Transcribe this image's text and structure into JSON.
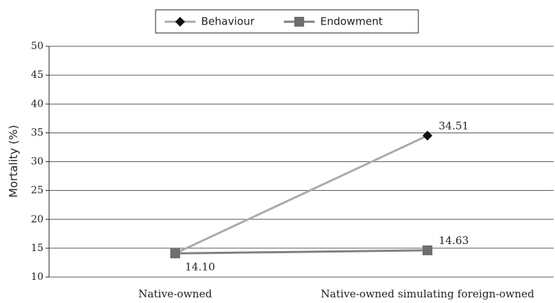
{
  "chart_data": {
    "type": "line",
    "categories": [
      "Native-owned",
      "Native-owned simulating foreign-owned"
    ],
    "series": [
      {
        "name": "Behaviour",
        "color": "#aaaaaa",
        "marker_color": "#111111",
        "marker": "diamond",
        "values": [
          14.1,
          34.51
        ],
        "value_labels": [
          null,
          "34.51"
        ]
      },
      {
        "name": "Endowment",
        "color": "#808080",
        "marker_color": "#6e6e6e",
        "marker": "square",
        "values": [
          14.1,
          14.63
        ],
        "value_labels": [
          "14.10",
          "14.63"
        ]
      }
    ],
    "y_label": "Mortality (%)",
    "ylim": [
      10,
      50
    ],
    "yticks": [
      10,
      15,
      20,
      25,
      30,
      35,
      40,
      45,
      50
    ],
    "grid": true,
    "legend": "top"
  }
}
